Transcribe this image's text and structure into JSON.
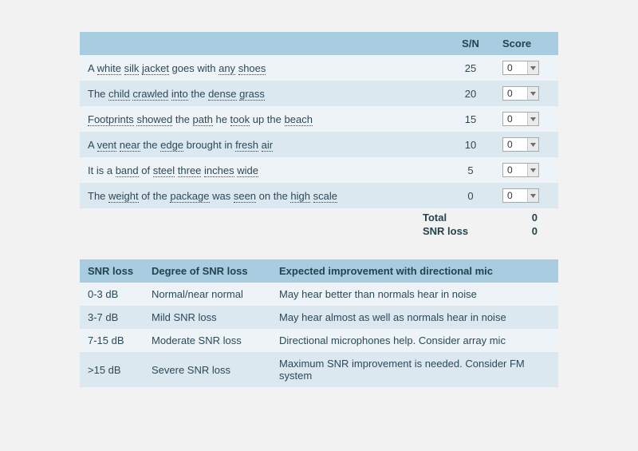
{
  "colors": {
    "page_bg": "#f2f2f2",
    "header_bg": "#a8cce0",
    "row_light": "#edf3f7",
    "row_dark": "#dbe8f0",
    "text": "#2a4a5a"
  },
  "sentence_table": {
    "headers": {
      "sentence": "",
      "sn": "S/N",
      "score": "Score"
    },
    "rows": [
      {
        "segments": [
          {
            "t": "A "
          },
          {
            "t": "white",
            "u": 1
          },
          {
            "t": " "
          },
          {
            "t": "silk",
            "u": 1
          },
          {
            "t": " "
          },
          {
            "t": "jacket",
            "u": 1
          },
          {
            "t": " goes with "
          },
          {
            "t": "any",
            "u": 1
          },
          {
            "t": " "
          },
          {
            "t": "shoes",
            "u": 1
          }
        ],
        "sn": 25,
        "score": "0"
      },
      {
        "segments": [
          {
            "t": "The "
          },
          {
            "t": "child",
            "u": 1
          },
          {
            "t": " "
          },
          {
            "t": "crawled",
            "u": 1
          },
          {
            "t": " "
          },
          {
            "t": "into",
            "u": 1
          },
          {
            "t": " the "
          },
          {
            "t": "dense",
            "u": 1
          },
          {
            "t": " "
          },
          {
            "t": "grass",
            "u": 1
          }
        ],
        "sn": 20,
        "score": "0"
      },
      {
        "segments": [
          {
            "t": "Footprints",
            "u": 1
          },
          {
            "t": " "
          },
          {
            "t": "showed",
            "u": 1
          },
          {
            "t": " the "
          },
          {
            "t": "path",
            "u": 1
          },
          {
            "t": " he "
          },
          {
            "t": "took",
            "u": 1
          },
          {
            "t": " up the "
          },
          {
            "t": "beach",
            "u": 1
          }
        ],
        "sn": 15,
        "score": "0"
      },
      {
        "segments": [
          {
            "t": "A "
          },
          {
            "t": "vent",
            "u": 1
          },
          {
            "t": " "
          },
          {
            "t": "near",
            "u": 1
          },
          {
            "t": " the "
          },
          {
            "t": "edge",
            "u": 1
          },
          {
            "t": " brought in "
          },
          {
            "t": "fresh",
            "u": 1
          },
          {
            "t": " "
          },
          {
            "t": "air",
            "u": 1
          }
        ],
        "sn": 10,
        "score": "0"
      },
      {
        "segments": [
          {
            "t": "It is a "
          },
          {
            "t": "band",
            "u": 1
          },
          {
            "t": " of "
          },
          {
            "t": "steel",
            "u": 1
          },
          {
            "t": " "
          },
          {
            "t": "three",
            "u": 1
          },
          {
            "t": " "
          },
          {
            "t": "inches",
            "u": 1
          },
          {
            "t": " "
          },
          {
            "t": "wide",
            "u": 1
          }
        ],
        "sn": 5,
        "score": "0"
      },
      {
        "segments": [
          {
            "t": "The "
          },
          {
            "t": "weight",
            "u": 1
          },
          {
            "t": " of the "
          },
          {
            "t": "package",
            "u": 1
          },
          {
            "t": " was "
          },
          {
            "t": "seen",
            "u": 1
          },
          {
            "t": " on the "
          },
          {
            "t": "high",
            "u": 1
          },
          {
            "t": " "
          },
          {
            "t": "scale",
            "u": 1
          }
        ],
        "sn": 0,
        "score": "0"
      }
    ]
  },
  "totals": {
    "total_label": "Total",
    "total_value": "0",
    "snr_label": "SNR loss",
    "snr_value": "0"
  },
  "reference_table": {
    "headers": {
      "snr": "SNR loss",
      "degree": "Degree of SNR loss",
      "improve": "Expected improvement with directional mic"
    },
    "rows": [
      {
        "snr": "0-3 dB",
        "degree": "Normal/near normal",
        "improve": "May hear better than normals hear in noise"
      },
      {
        "snr": "3-7 dB",
        "degree": "Mild SNR loss",
        "improve": "May hear almost as well as normals hear in noise"
      },
      {
        "snr": "7-15 dB",
        "degree": "Moderate SNR loss",
        "improve": "Directional microphones help. Consider array mic"
      },
      {
        "snr": ">15 dB",
        "degree": "Severe SNR loss",
        "improve": "Maximum SNR improvement is needed. Consider FM system"
      }
    ]
  }
}
